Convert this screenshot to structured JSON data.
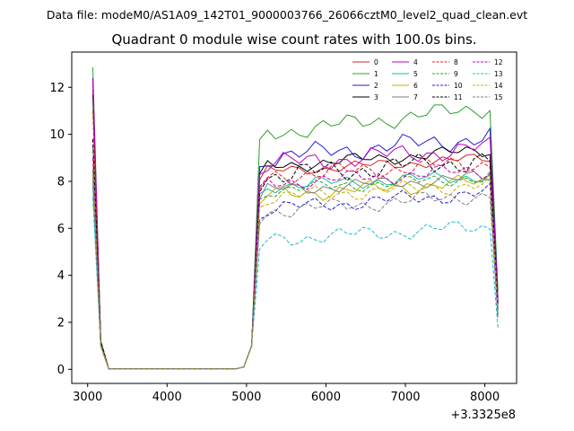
{
  "figure": {
    "suptitle": "Data file: modeM0/AS1A09_142T01_9000003766_26066cztM0_level2_quad_clean.evt"
  },
  "chart_data": {
    "type": "line",
    "title": "Quadrant 0 module wise count rates with 100.0s bins.",
    "xlabel": "",
    "ylabel": "",
    "x_offset_label": "+3.3325e8",
    "xlim": [
      2800,
      8400
    ],
    "ylim": [
      -0.6,
      13.5
    ],
    "x_ticks": [
      3000,
      4000,
      5000,
      6000,
      7000,
      8000
    ],
    "x_tick_labels": [
      "3000",
      "4000",
      "5000",
      "6000",
      "7000",
      "8000"
    ],
    "y_ticks": [
      0,
      2,
      4,
      6,
      8,
      10,
      12
    ],
    "y_tick_labels": [
      "0",
      "2",
      "4",
      "6",
      "8",
      "10",
      "12"
    ],
    "legend_position": "top-right",
    "shape": {
      "x_start": 3065,
      "x_step": 100,
      "x_end": 8165,
      "rise_start": [
        12.8,
        1.2,
        0.03
      ],
      "gap_count": 16,
      "ramp_up": [
        0.1,
        1.0
      ]
    },
    "series": [
      {
        "name": "0",
        "color": "#d62728",
        "dash": false,
        "start": 11.9,
        "base": 8.4,
        "trend": 0.02,
        "amp": 0.25,
        "phase": 0.3
      },
      {
        "name": "1",
        "color": "#2ca02c",
        "dash": false,
        "start": 12.85,
        "base": 10.0,
        "trend": 0.04,
        "amp": 0.4,
        "phase": 1.1
      },
      {
        "name": "2",
        "color": "#1f1fd6",
        "dash": false,
        "start": 12.4,
        "base": 9.0,
        "trend": 0.03,
        "amp": 0.45,
        "phase": 2.0
      },
      {
        "name": "3",
        "color": "#000000",
        "dash": false,
        "start": 11.7,
        "base": 8.6,
        "trend": 0.025,
        "amp": 0.3,
        "phase": 0.7
      },
      {
        "name": "4",
        "color": "#c000c0",
        "dash": false,
        "start": 12.3,
        "base": 8.7,
        "trend": 0.025,
        "amp": 0.45,
        "phase": 2.7
      },
      {
        "name": "5",
        "color": "#1abc9c",
        "dash": false,
        "start": 7.8,
        "base": 7.8,
        "trend": 0.015,
        "amp": 0.3,
        "phase": 1.6
      },
      {
        "name": "6",
        "color": "#c7b000",
        "dash": false,
        "start": 8.2,
        "base": 7.4,
        "trend": 0.02,
        "amp": 0.35,
        "phase": 3.3
      },
      {
        "name": "7",
        "color": "#7f7f7f",
        "dash": false,
        "start": 8.0,
        "base": 7.6,
        "trend": 0.02,
        "amp": 0.3,
        "phase": 0.2
      },
      {
        "name": "8",
        "color": "#e02020",
        "dash": true,
        "start": 11.0,
        "base": 8.2,
        "trend": 0.02,
        "amp": 0.4,
        "phase": 4.1
      },
      {
        "name": "9",
        "color": "#2ca02c",
        "dash": true,
        "start": 9.5,
        "base": 7.6,
        "trend": 0.02,
        "amp": 0.3,
        "phase": 1.9
      },
      {
        "name": "10",
        "color": "#1f1fd6",
        "dash": true,
        "start": 8.4,
        "base": 6.8,
        "trend": 0.025,
        "amp": 0.35,
        "phase": 2.4
      },
      {
        "name": "11",
        "color": "#000000",
        "dash": true,
        "start": 9.8,
        "base": 8.2,
        "trend": 0.025,
        "amp": 0.5,
        "phase": 5.0
      },
      {
        "name": "12",
        "color": "#c000c0",
        "dash": true,
        "start": 9.0,
        "base": 7.9,
        "trend": 0.02,
        "amp": 0.35,
        "phase": 0.9
      },
      {
        "name": "13",
        "color": "#17becf",
        "dash": true,
        "start": 7.3,
        "base": 5.5,
        "trend": 0.02,
        "amp": 0.35,
        "phase": 3.8
      },
      {
        "name": "14",
        "color": "#c7b000",
        "dash": true,
        "start": 8.6,
        "base": 7.3,
        "trend": 0.02,
        "amp": 0.35,
        "phase": 2.2
      },
      {
        "name": "15",
        "color": "#7f7f7f",
        "dash": true,
        "start": 8.5,
        "base": 6.7,
        "trend": 0.025,
        "amp": 0.35,
        "phase": 4.6
      }
    ]
  }
}
